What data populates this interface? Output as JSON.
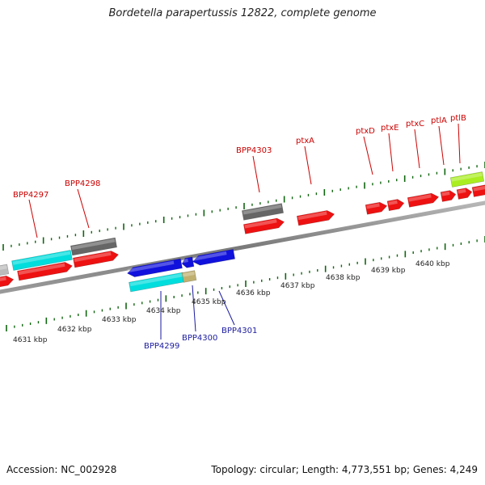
{
  "title": "Bordetella parapertussis 12822, complete genome",
  "footer": {
    "accession": "Accession: NC_002928",
    "summary": "Topology: circular; Length: 4,773,551 bp; Genes: 4,249"
  },
  "colors": {
    "forward_cds": "#ee1111",
    "reverse_cds": "#1111dd",
    "pseudo": "#666666",
    "cyan": "#00dddd",
    "lime": "#aaee22",
    "tan": "#c0b070",
    "tick": "#116611",
    "backbone": "#888888"
  },
  "scale_labels": [
    "4631 kbp",
    "4632 kbp",
    "4633 kbp",
    "4634 kbp",
    "4635 kbp",
    "4636 kbp",
    "4637 kbp",
    "4638 kbp",
    "4639 kbp",
    "4640 kbp"
  ],
  "gene_labels_top": [
    "BPP4297",
    "BPP4298",
    "BPP4303",
    "ptxA",
    "ptxD",
    "ptxE",
    "ptxC",
    "ptlA",
    "ptlB"
  ],
  "gene_labels_bottom": [
    "BPP4299",
    "BPP4300",
    "BPP4301"
  ]
}
